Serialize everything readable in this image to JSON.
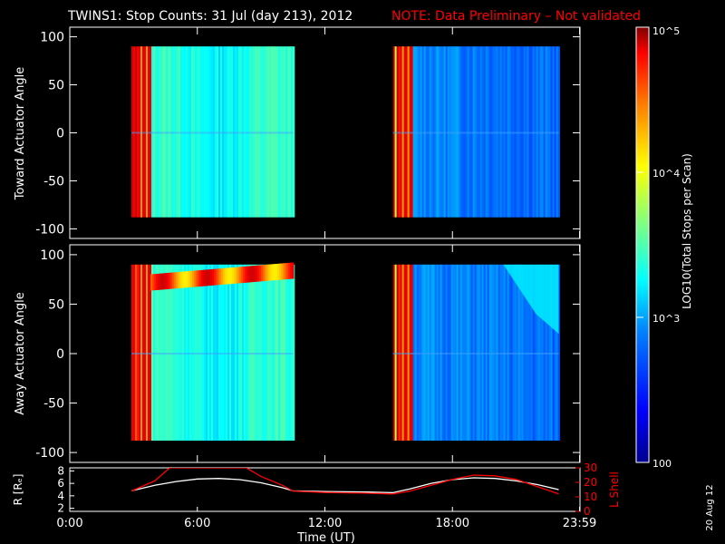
{
  "header": {
    "title": "TWINS1: Stop Counts: 31 Jul (day 213), 2012",
    "note": "NOTE: Data Preliminary – Not validated",
    "note_color": "#ff0000"
  },
  "side_label": "20 Aug 12",
  "chart_data": [
    {
      "type": "heatmap",
      "name": "toward",
      "ylabel": "Toward Actuator Angle",
      "ylim": [
        -110,
        110
      ],
      "yticks": [
        "100",
        "50",
        "0",
        "-50",
        "-100"
      ],
      "xlim": [
        0,
        24
      ],
      "data_intervals_hours": [
        [
          2.9,
          10.5
        ],
        [
          15.2,
          23.0
        ]
      ],
      "angle_range": [
        -88,
        90
      ]
    },
    {
      "type": "heatmap",
      "name": "away",
      "ylabel": "Away Actuator Angle",
      "ylim": [
        -110,
        110
      ],
      "yticks": [
        "100",
        "50",
        "0",
        "-50",
        "-100"
      ],
      "xlim": [
        0,
        24
      ],
      "data_intervals_hours": [
        [
          2.9,
          10.5
        ],
        [
          15.2,
          23.0
        ]
      ],
      "angle_range": [
        -88,
        90
      ]
    },
    {
      "type": "line",
      "name": "orbit",
      "xlabel": "Time (UT)",
      "xticks": [
        "0:00",
        "6:00",
        "12:00",
        "18:00",
        "23:59"
      ],
      "xlim": [
        0,
        24
      ],
      "left_axis": {
        "label": "R [Rₑ]",
        "ticks": [
          "8",
          "6",
          "4",
          "2"
        ],
        "ylim": [
          1.5,
          8.5
        ]
      },
      "right_axis": {
        "label": "L Shell",
        "ticks": [
          "30",
          "20",
          "10",
          "0"
        ],
        "ylim": [
          0,
          30
        ],
        "color": "#ff0000"
      },
      "series": [
        {
          "name": "R",
          "color": "#ffffff",
          "axis": "left",
          "x": [
            2.9,
            4.0,
            5.0,
            6.0,
            7.0,
            8.0,
            9.0,
            10.0,
            10.5,
            12.0,
            14.0,
            15.2,
            16.0,
            17.0,
            18.0,
            19.0,
            20.0,
            21.0,
            22.0,
            23.0
          ],
          "y": [
            4.8,
            5.7,
            6.3,
            6.7,
            6.8,
            6.6,
            6.1,
            5.3,
            4.8,
            4.7,
            4.6,
            4.5,
            5.1,
            6.0,
            6.6,
            6.9,
            6.8,
            6.4,
            5.8,
            5.0
          ]
        },
        {
          "name": "L Shell",
          "color": "#ff0000",
          "axis": "right",
          "x": [
            2.9,
            4.0,
            4.7,
            8.3,
            9.0,
            10.0,
            10.5,
            12.0,
            14.0,
            15.2,
            16.0,
            17.0,
            18.0,
            19.0,
            20.0,
            21.0,
            22.0,
            23.0
          ],
          "y": [
            14,
            21,
            30,
            30,
            24,
            18,
            14,
            13,
            12.5,
            12,
            14,
            18,
            22,
            25,
            24.5,
            22,
            17,
            12
          ]
        }
      ]
    }
  ],
  "colorbar": {
    "label": "LOG10(Total Stops per Scan)",
    "ticks": [
      "10^5",
      "10^4",
      "10^3",
      "100"
    ],
    "range": [
      100,
      100000
    ],
    "scale": "log",
    "colors": [
      "#00008f",
      "#0000ff",
      "#0080ff",
      "#00ffff",
      "#80ff80",
      "#ffff00",
      "#ff8000",
      "#ff0000",
      "#800000"
    ]
  }
}
